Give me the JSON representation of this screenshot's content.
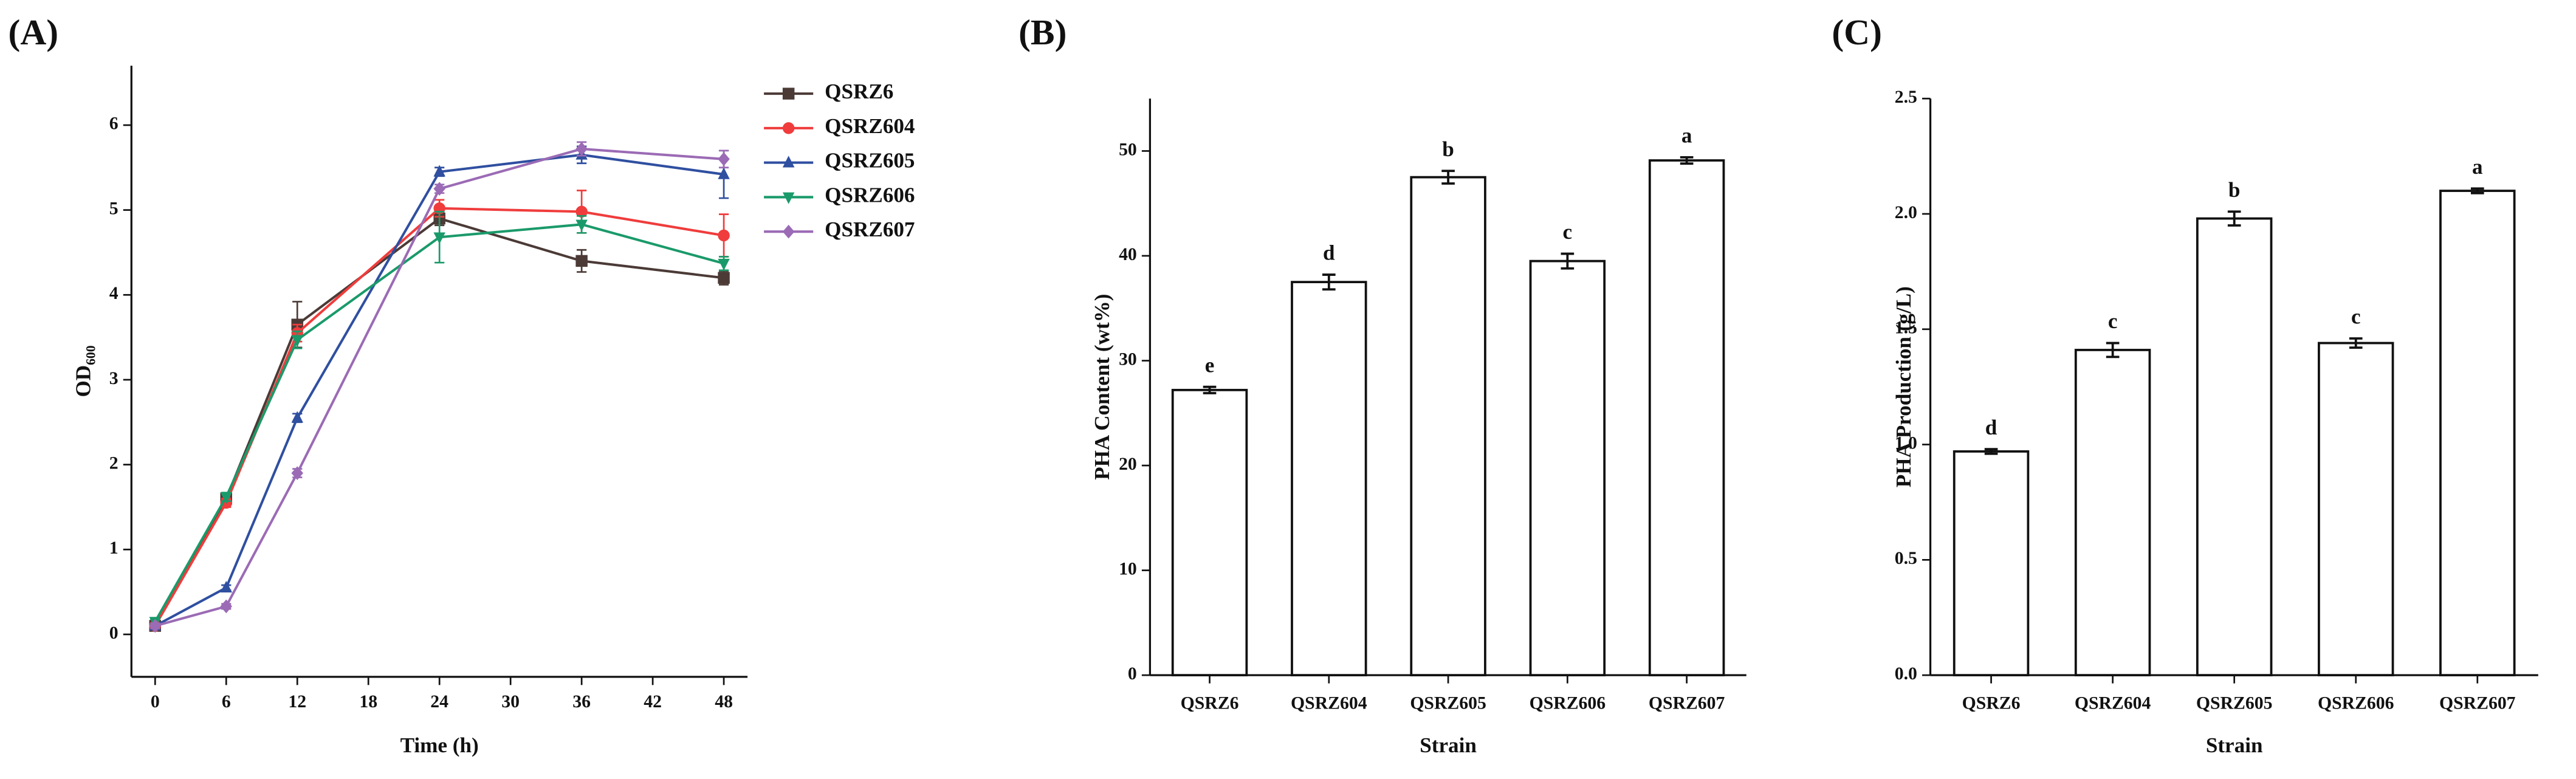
{
  "chart_data": [
    {
      "type": "line",
      "panel_label": "(A)",
      "xlabel": "Time (h)",
      "ylabel": "OD",
      "ylabel_subscript": "600",
      "x": [
        0,
        6,
        12,
        24,
        36,
        48
      ],
      "xlim": [
        -2,
        50
      ],
      "xticks": [
        0,
        6,
        12,
        18,
        24,
        30,
        36,
        42,
        48
      ],
      "ylim": [
        -0.5,
        6.7
      ],
      "yticks": [
        0,
        1,
        2,
        3,
        4,
        5,
        6
      ],
      "legend": "upper right outside",
      "series": [
        {
          "name": "QSRZ6",
          "color": "#4b3a36",
          "marker": "square",
          "values": [
            0.1,
            1.6,
            3.65,
            4.9,
            4.4,
            4.2
          ],
          "errors": [
            0.03,
            0.05,
            0.27,
            0.08,
            0.13,
            0.08
          ]
        },
        {
          "name": "QSRZ604",
          "color": "#f03c3c",
          "marker": "circle",
          "values": [
            0.1,
            1.55,
            3.55,
            5.02,
            4.98,
            4.7
          ],
          "errors": [
            0.03,
            0.05,
            0.1,
            0.1,
            0.25,
            0.25
          ]
        },
        {
          "name": "QSRZ605",
          "color": "#2f4fa0",
          "marker": "triangle-up",
          "values": [
            0.1,
            0.55,
            2.55,
            5.45,
            5.65,
            5.42
          ],
          "errors": [
            0.03,
            0.03,
            0.05,
            0.05,
            0.1,
            0.28
          ]
        },
        {
          "name": "QSRZ606",
          "color": "#1a9a6a",
          "marker": "triangle-down",
          "values": [
            0.15,
            1.62,
            3.47,
            4.68,
            4.83,
            4.37
          ],
          "errors": [
            0.03,
            0.05,
            0.1,
            0.3,
            0.1,
            0.08
          ]
        },
        {
          "name": "QSRZ607",
          "color": "#9b6bb5",
          "marker": "diamond",
          "values": [
            0.1,
            0.33,
            1.9,
            5.25,
            5.72,
            5.6
          ],
          "errors": [
            0.03,
            0.03,
            0.05,
            0.05,
            0.08,
            0.1
          ]
        }
      ]
    },
    {
      "type": "bar",
      "panel_label": "(B)",
      "xlabel": "Strain",
      "ylabel": "PHA Content (wt%)",
      "categories": [
        "QSRZ6",
        "QSRZ604",
        "QSRZ605",
        "QSRZ606",
        "QSRZ607"
      ],
      "values": [
        27.2,
        37.5,
        47.5,
        39.5,
        49.1
      ],
      "errors": [
        0.3,
        0.7,
        0.6,
        0.7,
        0.3
      ],
      "letters": [
        "e",
        "d",
        "b",
        "c",
        "a"
      ],
      "color": "#ffffff",
      "ylim": [
        0,
        55
      ],
      "yticks": [
        0,
        10,
        20,
        30,
        40,
        50
      ]
    },
    {
      "type": "bar",
      "panel_label": "(C)",
      "xlabel": "Strain",
      "ylabel": "PHA Production (g/L)",
      "categories": [
        "QSRZ6",
        "QSRZ604",
        "QSRZ605",
        "QSRZ606",
        "QSRZ607"
      ],
      "values": [
        0.97,
        1.41,
        1.98,
        1.44,
        2.1
      ],
      "errors": [
        0.01,
        0.03,
        0.03,
        0.02,
        0.01
      ],
      "letters": [
        "d",
        "c",
        "b",
        "c",
        "a"
      ],
      "color": "#ffffff",
      "ylim": [
        0,
        2.5
      ],
      "yticks": [
        {
          "value": 0,
          "label": "0.0"
        },
        {
          "value": 0.5,
          "label": "0.5"
        },
        {
          "value": 1,
          "label": "1.0"
        },
        {
          "value": 1.5,
          "label": "1.5"
        },
        {
          "value": 2,
          "label": "2.0"
        },
        {
          "value": 2.5,
          "label": "2.5"
        }
      ]
    }
  ]
}
